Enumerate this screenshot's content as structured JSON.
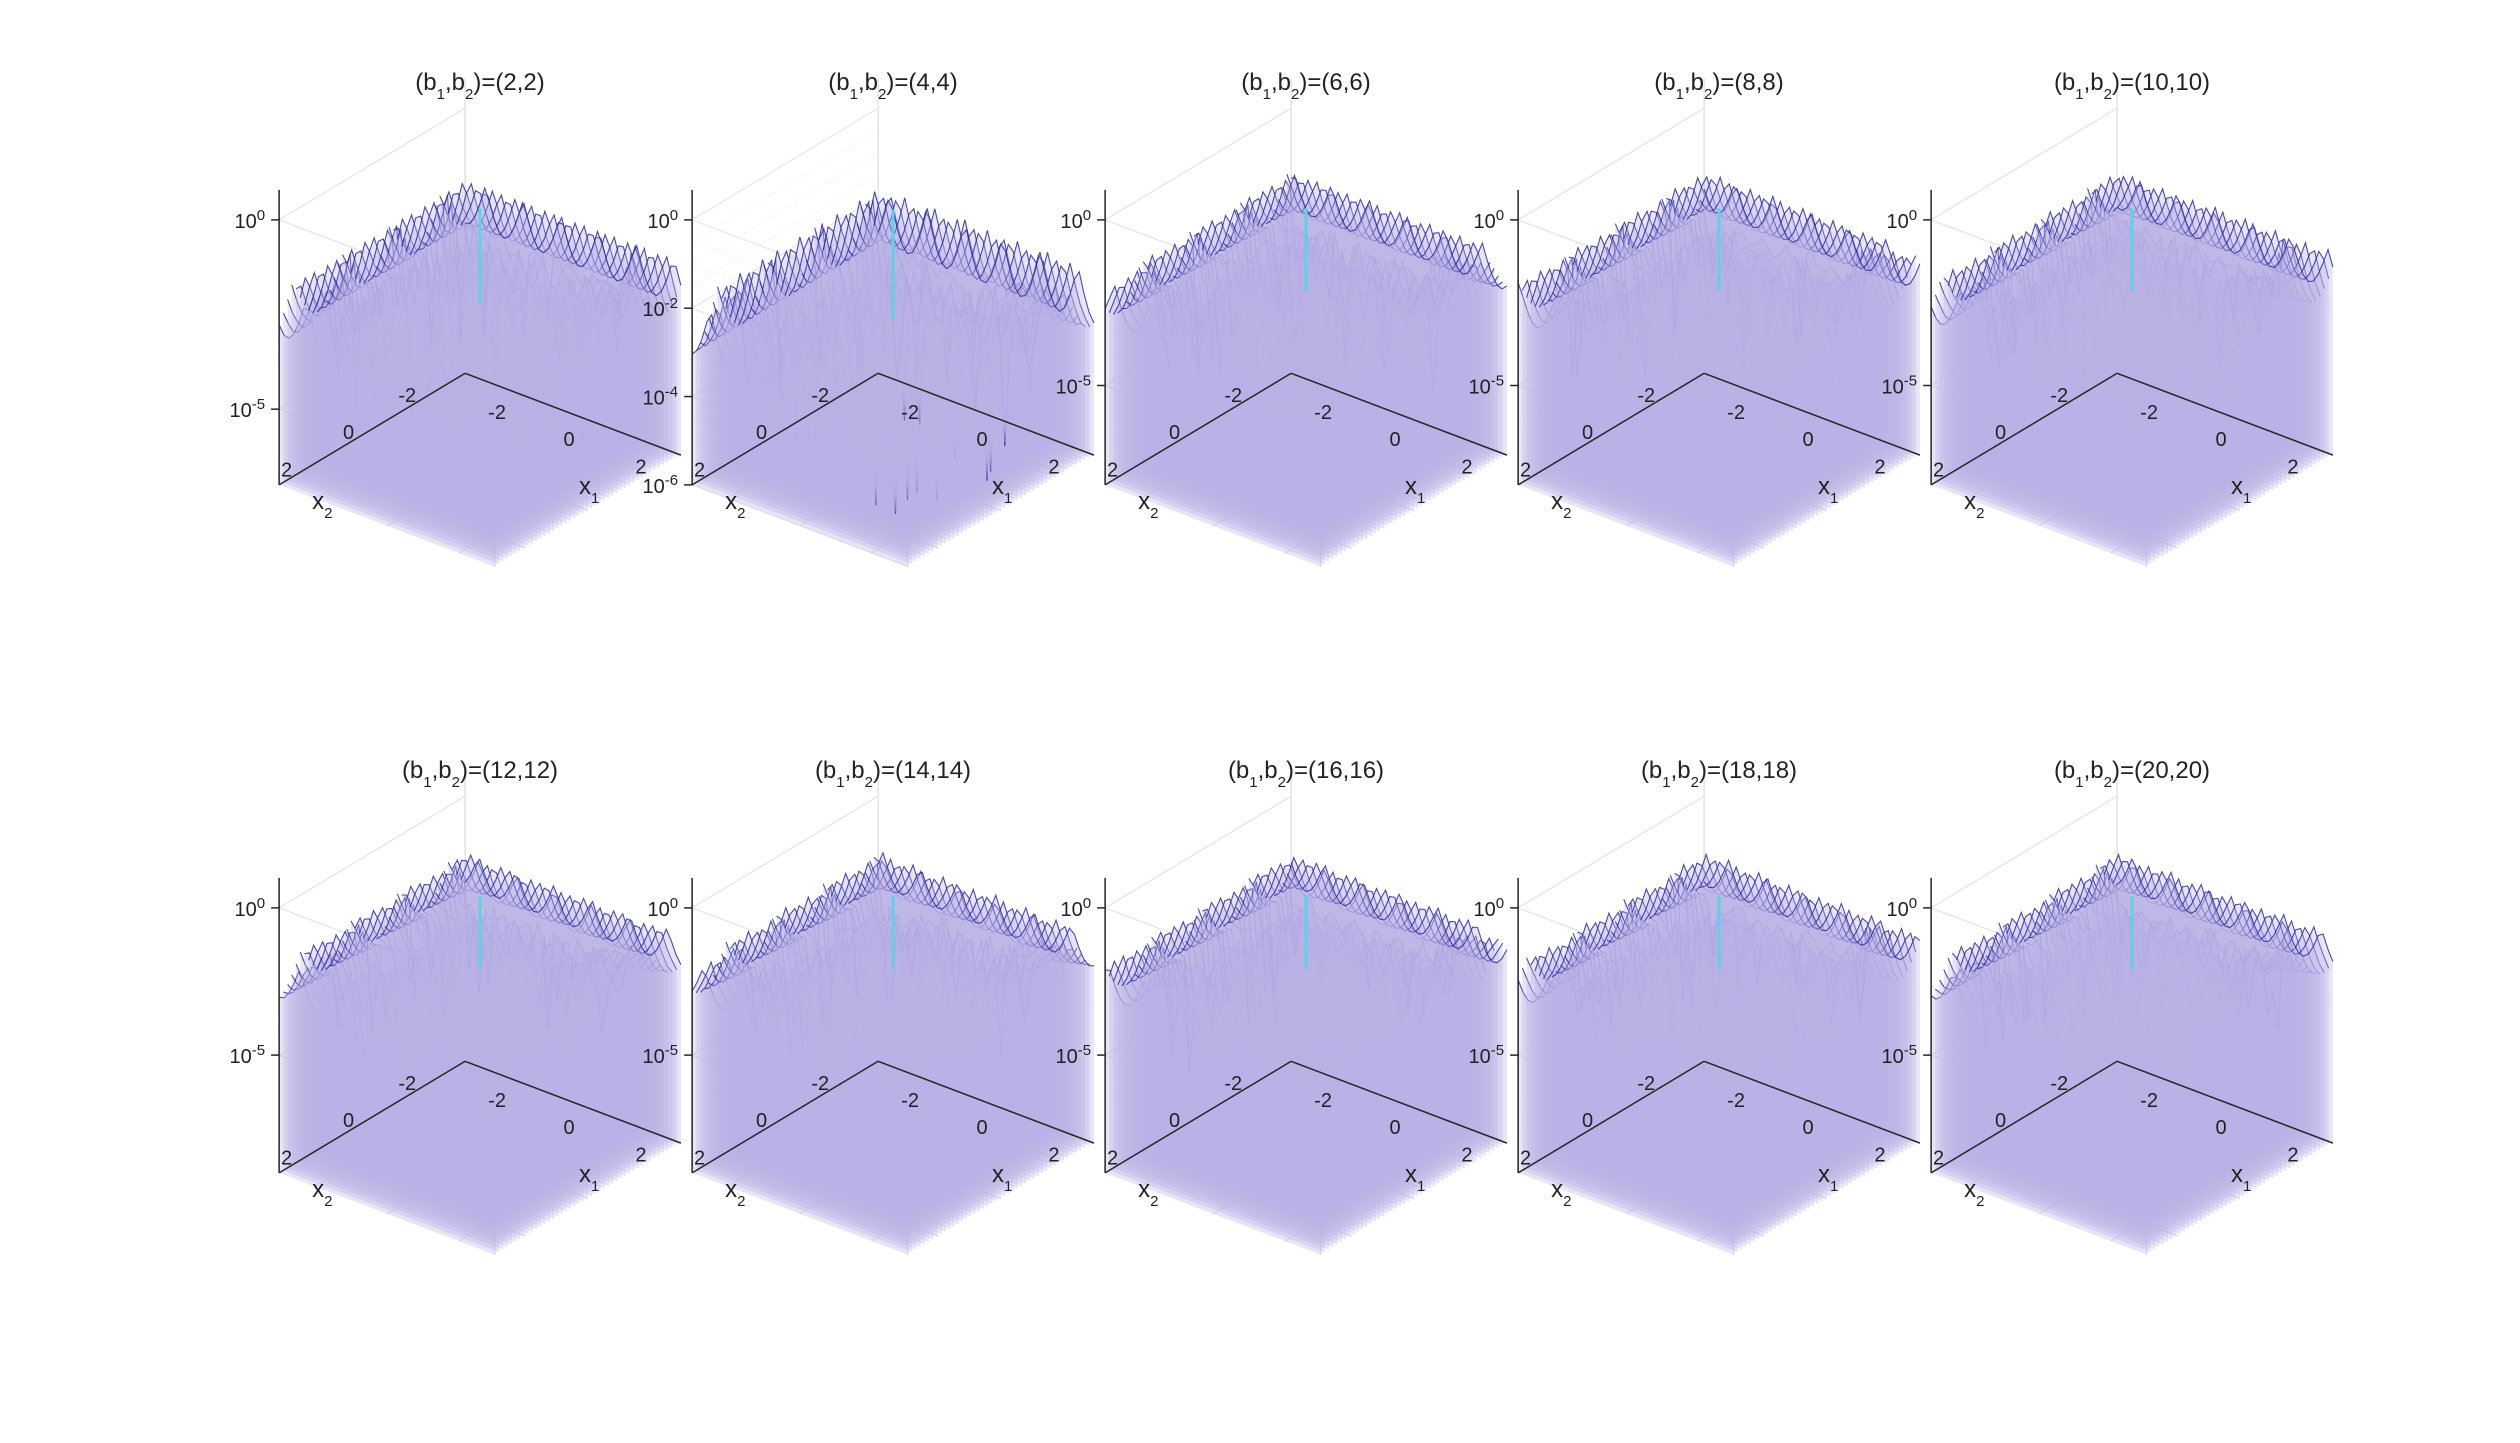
{
  "chart_data": [
    {
      "type": "surface",
      "title_pre": "(b",
      "title_s1": "1",
      "title_mid": ",b",
      "title_s2": "2",
      "title_post": ")=(2,2)",
      "b": [
        2,
        2
      ],
      "xlabel": "x",
      "xlabel_sub": "1",
      "ylabel": "x",
      "ylabel_sub": "2",
      "xticks": [
        "-2",
        "0",
        "2"
      ],
      "yticks": [
        "-2",
        "0",
        "2"
      ],
      "zscale": "log",
      "zlim_exp": [
        -7,
        0
      ],
      "zticks": [
        {
          "exp": 0,
          "base": "10",
          "sup": "0"
        },
        {
          "exp": -5,
          "base": "10",
          "sup": "-5"
        }
      ]
    },
    {
      "type": "surface",
      "title_pre": "(b",
      "title_s1": "1",
      "title_mid": ",b",
      "title_s2": "2",
      "title_post": ")=(4,4)",
      "b": [
        4,
        4
      ],
      "xlabel": "x",
      "xlabel_sub": "1",
      "ylabel": "x",
      "ylabel_sub": "2",
      "xticks": [
        "-2",
        "0",
        "2"
      ],
      "yticks": [
        "-2",
        "0",
        "2"
      ],
      "zscale": "log",
      "zlim_exp": [
        -6,
        0
      ],
      "minor_grid": true,
      "zticks": [
        {
          "exp": 0,
          "base": "10",
          "sup": "0"
        },
        {
          "exp": -2,
          "base": "10",
          "sup": "-2"
        },
        {
          "exp": -4,
          "base": "10",
          "sup": "-4"
        },
        {
          "exp": -6,
          "base": "10",
          "sup": "-6"
        }
      ]
    },
    {
      "type": "surface",
      "title_pre": "(b",
      "title_s1": "1",
      "title_mid": ",b",
      "title_s2": "2",
      "title_post": ")=(6,6)",
      "b": [
        6,
        6
      ],
      "xlabel": "x",
      "xlabel_sub": "1",
      "ylabel": "x",
      "ylabel_sub": "2",
      "xticks": [
        "-2",
        "0",
        "2"
      ],
      "yticks": [
        "-2",
        "0",
        "2"
      ],
      "zscale": "log",
      "zlim_exp": [
        -8,
        0
      ],
      "zticks": [
        {
          "exp": 0,
          "base": "10",
          "sup": "0"
        },
        {
          "exp": -5,
          "base": "10",
          "sup": "-5"
        }
      ]
    },
    {
      "type": "surface",
      "title_pre": "(b",
      "title_s1": "1",
      "title_mid": ",b",
      "title_s2": "2",
      "title_post": ")=(8,8)",
      "b": [
        8,
        8
      ],
      "xlabel": "x",
      "xlabel_sub": "1",
      "ylabel": "x",
      "ylabel_sub": "2",
      "xticks": [
        "-2",
        "0",
        "2"
      ],
      "yticks": [
        "-2",
        "0",
        "2"
      ],
      "zscale": "log",
      "zlim_exp": [
        -8,
        0
      ],
      "zticks": [
        {
          "exp": 0,
          "base": "10",
          "sup": "0"
        },
        {
          "exp": -5,
          "base": "10",
          "sup": "-5"
        }
      ]
    },
    {
      "type": "surface",
      "title_pre": "(b",
      "title_s1": "1",
      "title_mid": ",b",
      "title_s2": "2",
      "title_post": ")=(10,10)",
      "b": [
        10,
        10
      ],
      "xlabel": "x",
      "xlabel_sub": "1",
      "ylabel": "x",
      "ylabel_sub": "2",
      "xticks": [
        "-2",
        "0",
        "2"
      ],
      "yticks": [
        "-2",
        "0",
        "2"
      ],
      "zscale": "log",
      "zlim_exp": [
        -8,
        0
      ],
      "zticks": [
        {
          "exp": 0,
          "base": "10",
          "sup": "0"
        },
        {
          "exp": -5,
          "base": "10",
          "sup": "-5"
        }
      ]
    },
    {
      "type": "surface",
      "title_pre": "(b",
      "title_s1": "1",
      "title_mid": ",b",
      "title_s2": "2",
      "title_post": ")=(12,12)",
      "b": [
        12,
        12
      ],
      "xlabel": "x",
      "xlabel_sub": "1",
      "ylabel": "x",
      "ylabel_sub": "2",
      "xticks": [
        "-2",
        "0",
        "2"
      ],
      "yticks": [
        "-2",
        "0",
        "2"
      ],
      "zscale": "log",
      "zlim_exp": [
        -9,
        0
      ],
      "zticks": [
        {
          "exp": 0,
          "base": "10",
          "sup": "0"
        },
        {
          "exp": -5,
          "base": "10",
          "sup": "-5"
        }
      ]
    },
    {
      "type": "surface",
      "title_pre": "(b",
      "title_s1": "1",
      "title_mid": ",b",
      "title_s2": "2",
      "title_post": ")=(14,14)",
      "b": [
        14,
        14
      ],
      "xlabel": "x",
      "xlabel_sub": "1",
      "ylabel": "x",
      "ylabel_sub": "2",
      "xticks": [
        "-2",
        "0",
        "2"
      ],
      "yticks": [
        "-2",
        "0",
        "2"
      ],
      "zscale": "log",
      "zlim_exp": [
        -9,
        0
      ],
      "zticks": [
        {
          "exp": 0,
          "base": "10",
          "sup": "0"
        },
        {
          "exp": -5,
          "base": "10",
          "sup": "-5"
        }
      ]
    },
    {
      "type": "surface",
      "title_pre": "(b",
      "title_s1": "1",
      "title_mid": ",b",
      "title_s2": "2",
      "title_post": ")=(16,16)",
      "b": [
        16,
        16
      ],
      "xlabel": "x",
      "xlabel_sub": "1",
      "ylabel": "x",
      "ylabel_sub": "2",
      "xticks": [
        "-2",
        "0",
        "2"
      ],
      "yticks": [
        "-2",
        "0",
        "2"
      ],
      "zscale": "log",
      "zlim_exp": [
        -9,
        0
      ],
      "zticks": [
        {
          "exp": 0,
          "base": "10",
          "sup": "0"
        },
        {
          "exp": -5,
          "base": "10",
          "sup": "-5"
        }
      ]
    },
    {
      "type": "surface",
      "title_pre": "(b",
      "title_s1": "1",
      "title_mid": ",b",
      "title_s2": "2",
      "title_post": ")=(18,18)",
      "b": [
        18,
        18
      ],
      "xlabel": "x",
      "xlabel_sub": "1",
      "ylabel": "x",
      "ylabel_sub": "2",
      "xticks": [
        "-2",
        "0",
        "2"
      ],
      "yticks": [
        "-2",
        "0",
        "2"
      ],
      "zscale": "log",
      "zlim_exp": [
        -9,
        0
      ],
      "zticks": [
        {
          "exp": 0,
          "base": "10",
          "sup": "0"
        },
        {
          "exp": -5,
          "base": "10",
          "sup": "-5"
        }
      ]
    },
    {
      "type": "surface",
      "title_pre": "(b",
      "title_s1": "1",
      "title_mid": ",b",
      "title_s2": "2",
      "title_post": ")=(20,20)",
      "b": [
        20,
        20
      ],
      "xlabel": "x",
      "xlabel_sub": "1",
      "ylabel": "x",
      "ylabel_sub": "2",
      "xticks": [
        "-2",
        "0",
        "2"
      ],
      "yticks": [
        "-2",
        "0",
        "2"
      ],
      "zscale": "log",
      "zlim_exp": [
        -9,
        0
      ],
      "zticks": [
        {
          "exp": 0,
          "base": "10",
          "sup": "0"
        },
        {
          "exp": -5,
          "base": "10",
          "sup": "-5"
        }
      ]
    }
  ],
  "colors": {
    "mesh_edge": "#2a2aa0",
    "mesh_face": "#b9b3e6",
    "peak_highlight": "#5fd0e8",
    "axis": "#262626",
    "grid": "#e3e3e3",
    "minor_grid": "#efefef"
  }
}
